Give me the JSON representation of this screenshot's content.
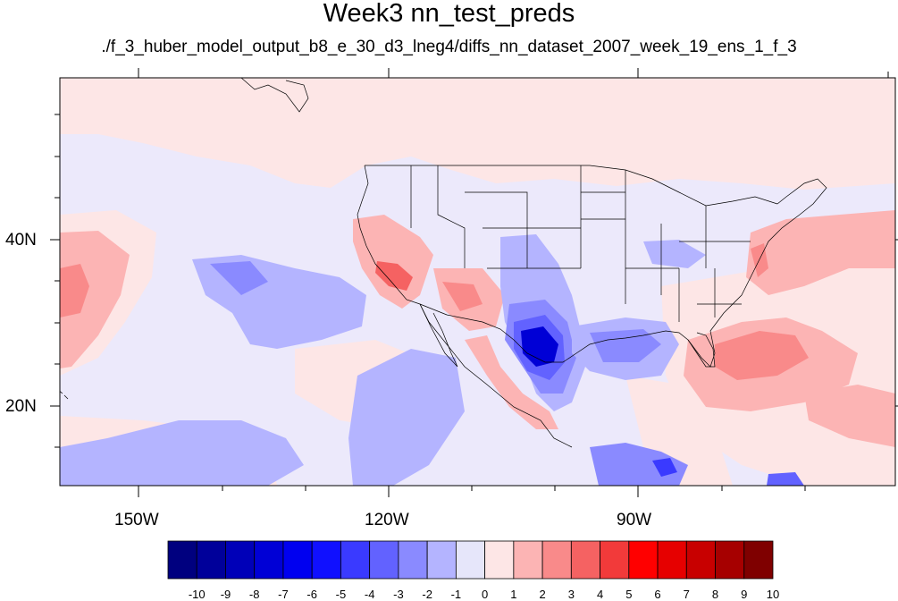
{
  "title": "Week3 nn_test_preds",
  "subtitle": "./f_3_huber_model_output_b8_e_30_d3_lneg4/diffs_nn_dataset_2007_week_19_ens_1_f_3",
  "axes": {
    "lat_labels": [
      "40N",
      "20N"
    ],
    "lon_labels": [
      "150W",
      "120W",
      "90W"
    ]
  },
  "colorbar": {
    "labels": [
      "-10",
      "-9",
      "-8",
      "-7",
      "-6",
      "-5",
      "-4",
      "-3",
      "-2",
      "-1",
      "0",
      "1",
      "2",
      "3",
      "4",
      "5",
      "6",
      "7",
      "8",
      "9",
      "10"
    ],
    "colors": [
      "#00007f",
      "#00009a",
      "#0000b8",
      "#0000d6",
      "#0000f0",
      "#1010ff",
      "#3a3aff",
      "#6262ff",
      "#8a8aff",
      "#b4b4ff",
      "#e6e6fa",
      "#fde6e6",
      "#fcb4b4",
      "#f98a8a",
      "#f56262",
      "#f23a3a",
      "#ff0000",
      "#e60000",
      "#c80000",
      "#a60000",
      "#7f0000"
    ]
  },
  "map_colors": {
    "background": "#ece9fb",
    "light_red": "#fde6e6",
    "red_1": "#fcb4b4",
    "red_2": "#f98a8a",
    "red_3": "#f56262",
    "blue_1": "#b4b4ff",
    "blue_2": "#8a8aff",
    "blue_3": "#6262ff",
    "blue_4": "#3a3aff",
    "blue_5": "#0000d6"
  }
}
